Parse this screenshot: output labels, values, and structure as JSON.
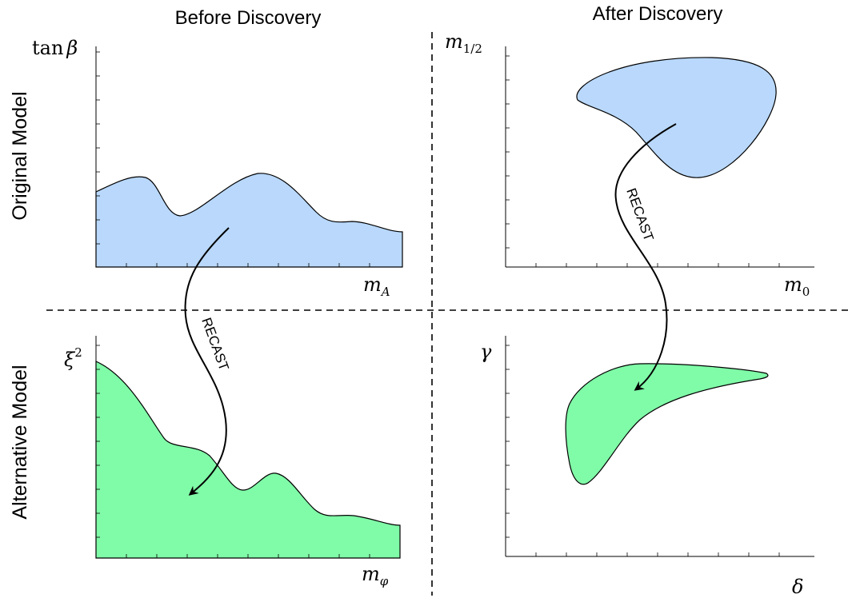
{
  "columns": {
    "before": "Before Discovery",
    "after": "After Discovery"
  },
  "rows": {
    "original": "Original Model",
    "alternative": "Alternative Model"
  },
  "panels": {
    "top_left": {
      "y_label_main": "tan",
      "y_label_greek": "β",
      "x_label_main": "m",
      "x_label_sub": "A"
    },
    "top_right": {
      "y_label_main": "m",
      "y_label_sub": "1/2",
      "x_label_main": "m",
      "x_label_sub": "0"
    },
    "bottom_left": {
      "y_label_main": "ξ",
      "y_label_sup": "2",
      "x_label_main": "m",
      "x_label_sub": "φ"
    },
    "bottom_right": {
      "y_label_main": "γ",
      "x_label_main": "δ"
    }
  },
  "arrows": {
    "left_label": "RECAST",
    "right_label": "RECAST"
  },
  "colors": {
    "original_region": "#b9d8fb",
    "alternative_region": "#80fba8"
  }
}
